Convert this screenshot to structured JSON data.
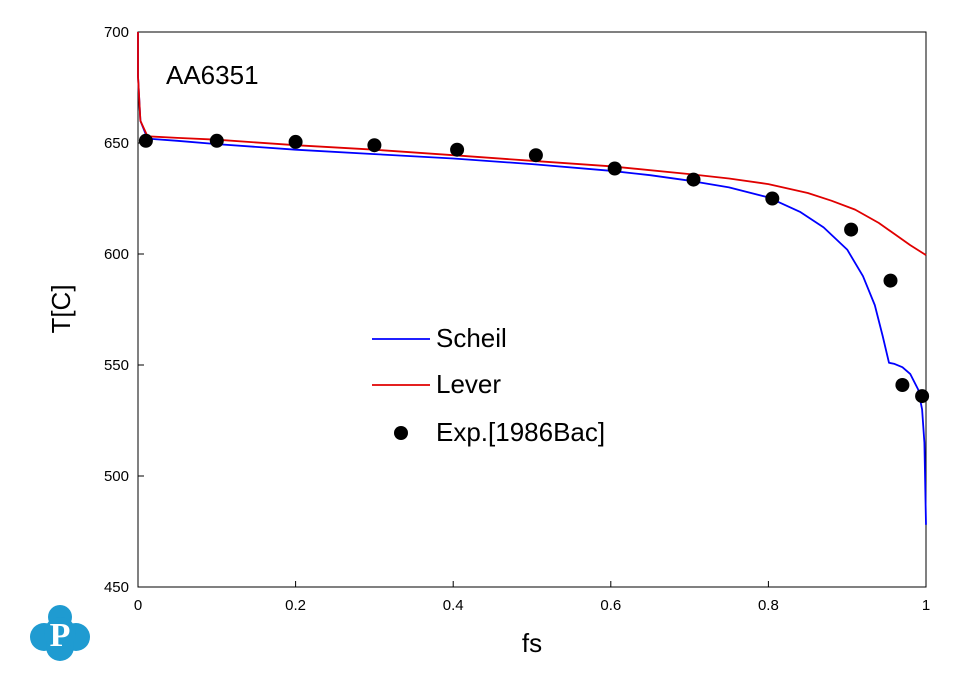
{
  "chart_data": {
    "type": "line",
    "annotation": "AA6351",
    "xlabel": "fs",
    "ylabel": "T[C]",
    "xlim": [
      0,
      1
    ],
    "ylim": [
      450,
      700
    ],
    "xticks": [
      "0",
      "0.2",
      "0.4",
      "0.6",
      "0.8",
      "1"
    ],
    "yticks": [
      "450",
      "500",
      "550",
      "600",
      "650",
      "700"
    ],
    "grid": false,
    "legend_position": "center",
    "series": [
      {
        "name": "Scheil",
        "style": "line",
        "color": "#0000ff",
        "x": [
          0.0,
          0.0,
          0.003,
          0.012,
          0.05,
          0.1,
          0.2,
          0.3,
          0.4,
          0.5,
          0.6,
          0.65,
          0.7,
          0.75,
          0.8,
          0.84,
          0.87,
          0.9,
          0.92,
          0.935,
          0.945,
          0.953,
          0.96,
          0.97,
          0.98,
          0.99,
          0.995,
          0.998,
          1.0
        ],
        "y": [
          700,
          680,
          660,
          652,
          651,
          649.5,
          647,
          645,
          643,
          640.5,
          637.5,
          635.5,
          633,
          630,
          625.5,
          619,
          612,
          602,
          590,
          577,
          563,
          551,
          550.5,
          549,
          546,
          539,
          530,
          515,
          478
        ]
      },
      {
        "name": "Lever",
        "style": "line",
        "color": "#e00000",
        "x": [
          0.0,
          0.0,
          0.003,
          0.012,
          0.05,
          0.1,
          0.2,
          0.3,
          0.4,
          0.5,
          0.6,
          0.7,
          0.75,
          0.8,
          0.85,
          0.88,
          0.91,
          0.94,
          0.96,
          0.98,
          1.0
        ],
        "y": [
          700,
          680,
          660,
          653,
          652.3,
          651.5,
          649,
          647,
          644.5,
          642,
          639.5,
          636,
          634,
          631.5,
          627.5,
          624,
          620,
          614,
          609,
          604,
          599.5
        ]
      },
      {
        "name": "Exp.[1986Bac]",
        "style": "marker",
        "color": "#000000",
        "x": [
          0.01,
          0.1,
          0.2,
          0.3,
          0.405,
          0.505,
          0.605,
          0.705,
          0.805,
          0.905,
          0.955,
          0.97,
          0.995
        ],
        "y": [
          651,
          651,
          650.5,
          649,
          647,
          644.5,
          638.5,
          633.5,
          625,
          611,
          588,
          541,
          536
        ]
      }
    ]
  },
  "logo": {
    "letter": "P",
    "color": "#1f9bd1"
  }
}
